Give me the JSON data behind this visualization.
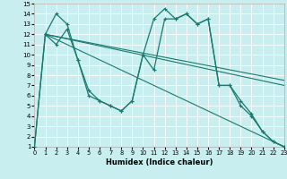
{
  "xlabel": "Humidex (Indice chaleur)",
  "background_color": "#c8eef0",
  "grid_color": "#ffffff",
  "line_color": "#1a7a6e",
  "xlim": [
    0,
    23
  ],
  "ylim": [
    1,
    15
  ],
  "xticks": [
    0,
    1,
    2,
    3,
    4,
    5,
    6,
    7,
    8,
    9,
    10,
    11,
    12,
    13,
    14,
    15,
    16,
    17,
    18,
    19,
    20,
    21,
    22,
    23
  ],
  "yticks": [
    1,
    2,
    3,
    4,
    5,
    6,
    7,
    8,
    9,
    10,
    11,
    12,
    13,
    14,
    15
  ],
  "series1_x": [
    0,
    1,
    2,
    3,
    4,
    5,
    6,
    7,
    8,
    9,
    10,
    11,
    12,
    13,
    14,
    15,
    16,
    17,
    18,
    19,
    20,
    21,
    22,
    23
  ],
  "series1_y": [
    1,
    12,
    14,
    13,
    9.5,
    6,
    5.5,
    5,
    4.5,
    5.5,
    10,
    13.5,
    14.5,
    13.5,
    14,
    13,
    13.5,
    7,
    7,
    5,
    4,
    2.5,
    1.5,
    1
  ],
  "series2_x": [
    0,
    1,
    2,
    3,
    4,
    5,
    6,
    7,
    8,
    9,
    10,
    11,
    12,
    13,
    14,
    15,
    16,
    17,
    18,
    19,
    20,
    21,
    22,
    23
  ],
  "series2_y": [
    1,
    12,
    11,
    12.5,
    9.5,
    6.5,
    5.5,
    5,
    4.5,
    5.5,
    10,
    8.5,
    13.5,
    13.5,
    14,
    13,
    13.5,
    7,
    7,
    5.5,
    4.2,
    2.5,
    1.5,
    1
  ],
  "series3_x": [
    1,
    23
  ],
  "series3_y": [
    12,
    1
  ],
  "series4_x": [
    1,
    23
  ],
  "series4_y": [
    12,
    7
  ],
  "series5_x": [
    1,
    23
  ],
  "series5_y": [
    12,
    7.5
  ]
}
